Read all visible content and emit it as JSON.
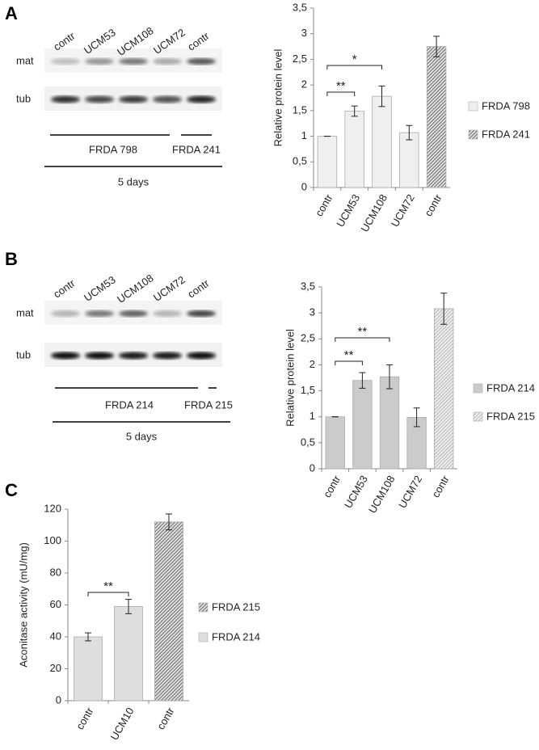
{
  "panel_labels": [
    "A",
    "B",
    "C"
  ],
  "blots": [
    {
      "lanes": [
        "contr",
        "UCM53",
        "UCM108",
        "UCM72",
        "contr"
      ],
      "rows": [
        "mat",
        "tub"
      ],
      "groups": [
        "FRDA 798",
        "FRDA 241"
      ],
      "duration": "5 days"
    },
    {
      "lanes": [
        "contr",
        "UCM53",
        "UCM108",
        "UCM72",
        "contr"
      ],
      "rows": [
        "mat",
        "tub"
      ],
      "groups": [
        "FRDA 214",
        "FRDA 215"
      ],
      "duration": "5 days"
    }
  ],
  "chart_data": [
    {
      "type": "bar",
      "y_label": "Relative protein level",
      "categories": [
        "contr",
        "UCM53",
        "UCM108",
        "UCM72",
        "contr"
      ],
      "series": [
        {
          "name": "FRDA 798",
          "color": "#efefef",
          "hatch": false,
          "values": [
            1,
            1.49,
            1.78,
            1.07,
            null
          ],
          "errors": [
            0,
            0.1,
            0.2,
            0.14,
            null
          ]
        },
        {
          "name": "FRDA 241",
          "color": "#8a8a8a",
          "hatch": true,
          "values": [
            null,
            null,
            null,
            null,
            2.75
          ],
          "errors": [
            null,
            null,
            null,
            null,
            0.2
          ]
        }
      ],
      "ylim": [
        0,
        3.5
      ],
      "yticks": [
        0,
        {
          "value": 0.5,
          "label": "0,5"
        },
        1,
        {
          "value": 1.5,
          "label": "1,5"
        },
        2,
        {
          "value": 2.5,
          "label": "2,5"
        },
        3,
        {
          "value": 3.5,
          "label": "3,5"
        }
      ],
      "annotations": [
        "**",
        "*"
      ]
    },
    {
      "type": "bar",
      "y_label": "Relative protein level",
      "categories": [
        "contr",
        "UCM53",
        "UCM108",
        "UCM72",
        "contr"
      ],
      "series": [
        {
          "name": "FRDA 214",
          "color": "#cbcbcb",
          "hatch": false,
          "values": [
            1,
            1.7,
            1.77,
            0.99,
            null
          ],
          "errors": [
            0,
            0.15,
            0.23,
            0.18,
            null
          ]
        },
        {
          "name": "FRDA 215",
          "color": "#c4c4c4",
          "hatch": true,
          "values": [
            null,
            null,
            null,
            null,
            3.08
          ],
          "errors": [
            null,
            null,
            null,
            null,
            0.3
          ]
        }
      ],
      "ylim": [
        0,
        3.5
      ],
      "yticks": [
        0,
        {
          "value": 0.5,
          "label": "0,5"
        },
        1,
        {
          "value": 1.5,
          "label": "1,5"
        },
        2,
        {
          "value": 2.5,
          "label": "2,5"
        },
        3,
        {
          "value": 3.5,
          "label": "3,5"
        }
      ],
      "annotations": [
        "**",
        "**"
      ]
    },
    {
      "type": "bar",
      "y_label": "Aconitase activity (mU/mg)",
      "categories": [
        "contr",
        "UCM10",
        "contr"
      ],
      "series": [
        {
          "name": "FRDA 215",
          "color": "#8a8a8a",
          "hatch": true,
          "values": [
            null,
            null,
            112
          ],
          "errors": [
            null,
            null,
            5
          ]
        },
        {
          "name": "FRDA 214",
          "color": "#dedede",
          "hatch": false,
          "values": [
            40,
            59,
            null
          ],
          "errors": [
            2.5,
            4.5,
            null
          ]
        }
      ],
      "ylim": [
        0,
        120
      ],
      "yticks": [
        0,
        20,
        40,
        60,
        80,
        100,
        120
      ],
      "annotations": [
        "**"
      ]
    }
  ]
}
